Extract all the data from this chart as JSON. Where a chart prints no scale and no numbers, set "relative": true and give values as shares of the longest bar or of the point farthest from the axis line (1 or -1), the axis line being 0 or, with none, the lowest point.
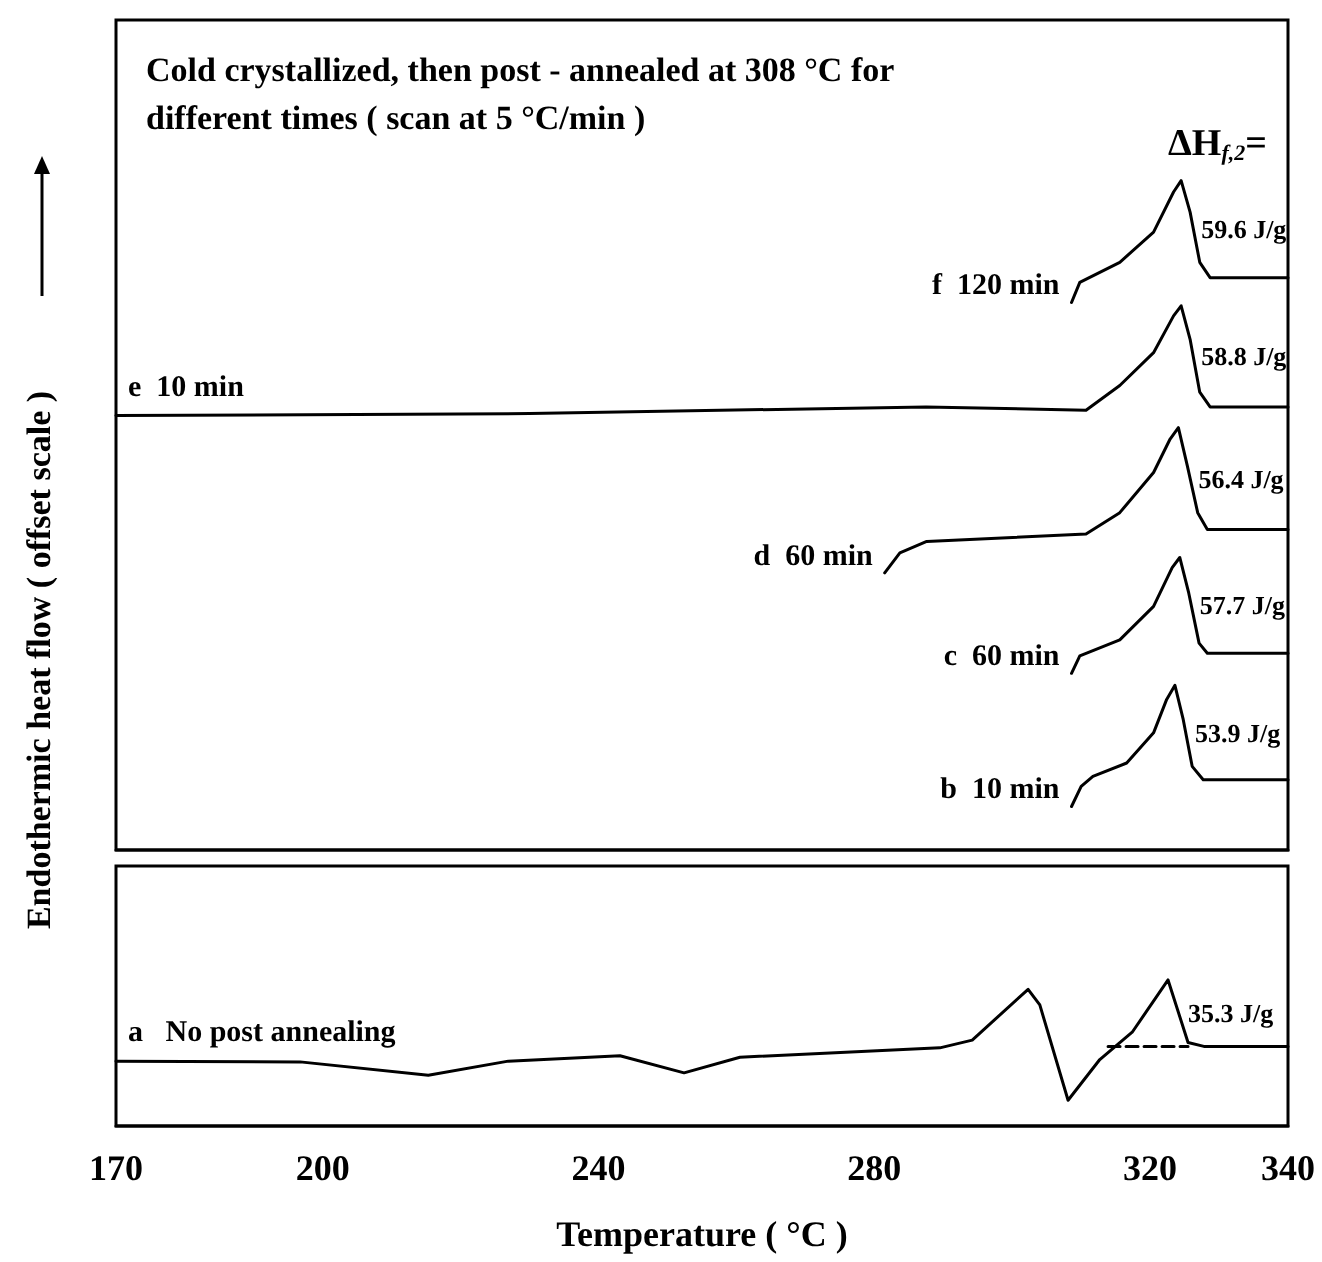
{
  "chart_data": [
    {
      "type": "line",
      "title": "Cold crystallized, then post - annealed at 308 °C for different times ( scan at 5 °C/min )",
      "ylabel": "Endothermic heat flow ( offset scale )",
      "relative": true,
      "xlim": [
        170,
        340
      ],
      "xticks": [
        170,
        200,
        240,
        280,
        320,
        340
      ],
      "tick_labels": false,
      "marker": "none",
      "line_style": "solid",
      "legend": false,
      "grid": false,
      "series": [
        {
          "name": "f  120 min",
          "color": "#000000",
          "x": [
            308.6,
            309.8,
            315.6,
            320.5,
            323.4,
            324.5,
            325.8,
            327.2,
            328.7,
            340
          ],
          "values": [
            0.818,
            0.848,
            0.878,
            0.923,
            0.983,
            1.0,
            0.953,
            0.878,
            0.855,
            0.855
          ]
        },
        {
          "name": "e  10 min",
          "color": "#000000",
          "x": [
            170,
            230,
            287.5,
            310.7,
            315.6,
            320.5,
            323.4,
            324.5,
            325.8,
            327.2,
            328.7,
            340
          ],
          "values": [
            0.649,
            0.652,
            0.662,
            0.657,
            0.694,
            0.743,
            0.798,
            0.813,
            0.763,
            0.684,
            0.662,
            0.662
          ]
        },
        {
          "name": "d  60 min",
          "color": "#000000",
          "x": [
            281.5,
            283.7,
            287.6,
            310.7,
            315.6,
            320.5,
            322.9,
            324.1,
            325.4,
            326.9,
            328.3,
            340
          ],
          "values": [
            0.414,
            0.444,
            0.461,
            0.472,
            0.504,
            0.564,
            0.614,
            0.631,
            0.574,
            0.504,
            0.479,
            0.479
          ]
        },
        {
          "name": "c  60 min",
          "color": "#000000",
          "x": [
            308.6,
            309.8,
            315.6,
            320.5,
            323.2,
            324.3,
            325.6,
            327.1,
            328.3,
            340
          ],
          "values": [
            0.264,
            0.29,
            0.314,
            0.364,
            0.422,
            0.437,
            0.384,
            0.309,
            0.294,
            0.294
          ]
        },
        {
          "name": "b  10 min",
          "color": "#000000",
          "x": [
            308.6,
            310,
            311.7,
            316.6,
            320.5,
            322.4,
            323.6,
            324.8,
            326.1,
            327.7,
            340
          ],
          "values": [
            0.065,
            0.095,
            0.11,
            0.13,
            0.175,
            0.225,
            0.246,
            0.195,
            0.125,
            0.105,
            0.105
          ]
        }
      ],
      "annotations": [
        "ΔH$_{f,2}$=",
        "59.6 J/g",
        "58.8 J/g",
        "56.4 J/g",
        "57.7 J/g",
        "53.9 J/g"
      ]
    },
    {
      "type": "line",
      "xlabel": "Temperature ( °C )",
      "relative": true,
      "xlim": [
        170,
        340
      ],
      "xticks": [
        170,
        200,
        240,
        280,
        320,
        340
      ],
      "tick_labels": "x",
      "marker": "none",
      "line_style": "solid",
      "legend": false,
      "grid": false,
      "series": [
        {
          "name": "a   No post annealing",
          "color": "#000000",
          "x": [
            170,
            196.7,
            215.3,
            226.9,
            243.1,
            252.4,
            260.5,
            289.5,
            294.2,
            302.3,
            304,
            308.1,
            312.7,
            317.4,
            322.6,
            325.5,
            327.8,
            340
          ],
          "values": [
            0.444,
            0.439,
            0.348,
            0.444,
            0.481,
            0.364,
            0.471,
            0.535,
            0.588,
            0.936,
            0.829,
            0.176,
            0.455,
            0.642,
            1.0,
            0.572,
            0.545,
            0.545
          ]
        },
        {
          "color": "#000000",
          "line_style": "dashed",
          "x": [
            313.9,
            325.5
          ],
          "values": [
            0.545,
            0.545
          ]
        }
      ],
      "annotations": [
        "35.3 J/g"
      ]
    }
  ]
}
